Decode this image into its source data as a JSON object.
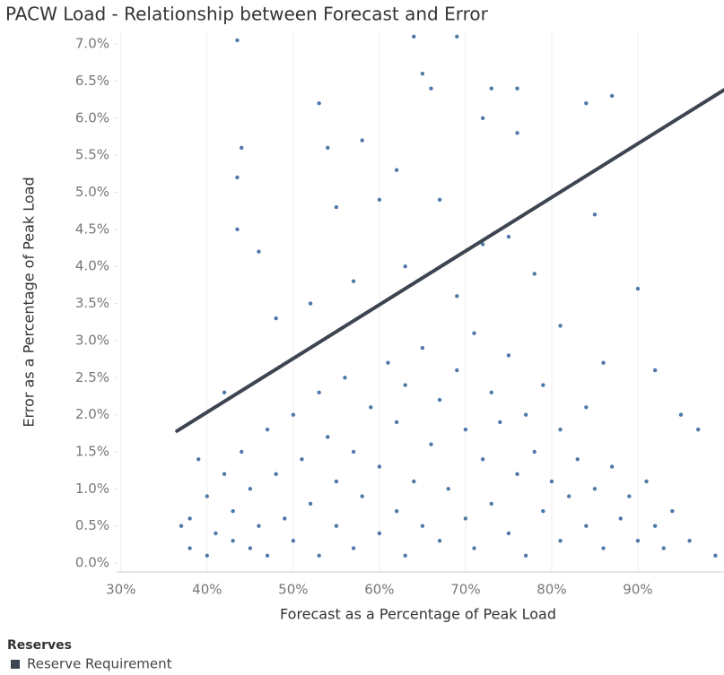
{
  "chart_data": {
    "type": "scatter",
    "title": "PACW Load - Relationship between Forecast and Error",
    "x_label": "Forecast as a Percentage of Peak Load",
    "y_label": "Error as a Percentage of Peak Load",
    "legend_title": "Reserves",
    "xlim": [
      29.5,
      100
    ],
    "ylim": [
      -0.12,
      7.17
    ],
    "xticks": [
      {
        "value": 30,
        "label": "30%"
      },
      {
        "value": 40,
        "label": "40%"
      },
      {
        "value": 50,
        "label": "50%"
      },
      {
        "value": 60,
        "label": "60%"
      },
      {
        "value": 70,
        "label": "70%"
      },
      {
        "value": 80,
        "label": "80%"
      },
      {
        "value": 90,
        "label": "90%"
      }
    ],
    "yticks": [
      {
        "value": 0,
        "label": "0.0%"
      },
      {
        "value": 0.5,
        "label": "0.5%"
      },
      {
        "value": 1,
        "label": "1.0%"
      },
      {
        "value": 1.5,
        "label": "1.5%"
      },
      {
        "value": 2,
        "label": "2.0%"
      },
      {
        "value": 2.5,
        "label": "2.5%"
      },
      {
        "value": 3,
        "label": "3.0%"
      },
      {
        "value": 3.5,
        "label": "3.5%"
      },
      {
        "value": 4,
        "label": "4.0%"
      },
      {
        "value": 4.5,
        "label": "4.5%"
      },
      {
        "value": 5,
        "label": "5.0%"
      },
      {
        "value": 5.5,
        "label": "5.5%"
      },
      {
        "value": 6,
        "label": "6.0%"
      },
      {
        "value": 6.5,
        "label": "6.5%"
      },
      {
        "value": 7,
        "label": "7.0%"
      }
    ],
    "grid": true,
    "series": [
      {
        "color": "#4e79a7",
        "x": [
          38,
          38,
          40,
          40,
          41,
          42,
          43,
          43,
          44,
          45,
          45,
          46,
          47,
          47,
          48,
          49,
          50,
          50,
          51,
          52,
          53,
          53,
          54,
          55,
          55,
          56,
          57,
          57,
          58,
          59,
          60,
          60,
          61,
          62,
          62,
          63,
          63,
          64,
          65,
          65,
          66,
          67,
          67,
          68,
          69,
          70,
          70,
          71,
          71,
          72,
          73,
          73,
          74,
          75,
          75,
          76,
          77,
          77,
          78,
          79,
          79,
          80,
          81,
          81,
          82,
          83,
          84,
          84,
          85,
          86,
          87,
          88,
          89,
          90,
          91,
          92,
          93,
          94,
          96,
          99,
          43.5,
          44,
          43.5,
          43.5,
          53,
          54,
          58,
          62,
          64,
          65,
          66,
          69,
          72,
          73,
          76,
          76,
          84,
          87,
          55,
          60,
          67,
          72,
          78,
          85,
          90,
          92,
          95,
          97,
          48,
          52,
          46,
          57,
          63,
          69,
          75,
          81,
          86,
          42,
          39,
          37
        ],
        "values": [
          0.2,
          0.6,
          0.1,
          0.9,
          0.4,
          1.2,
          0.3,
          0.7,
          1.5,
          0.2,
          1.0,
          0.5,
          1.8,
          0.1,
          1.2,
          0.6,
          2.0,
          0.3,
          1.4,
          0.8,
          2.3,
          0.1,
          1.7,
          0.5,
          1.1,
          2.5,
          0.2,
          1.5,
          0.9,
          2.1,
          0.4,
          1.3,
          2.7,
          0.7,
          1.9,
          0.1,
          2.4,
          1.1,
          0.5,
          2.9,
          1.6,
          0.3,
          2.2,
          1.0,
          2.6,
          0.6,
          1.8,
          0.2,
          3.1,
          1.4,
          0.8,
          2.3,
          1.9,
          0.4,
          2.8,
          1.2,
          0.1,
          2.0,
          1.5,
          0.7,
          2.4,
          1.1,
          0.3,
          1.8,
          0.9,
          1.4,
          0.5,
          2.1,
          1.0,
          0.2,
          1.3,
          0.6,
          0.9,
          0.3,
          1.1,
          0.5,
          0.2,
          0.7,
          0.3,
          0.1,
          7.05,
          5.6,
          5.2,
          4.5,
          6.2,
          5.6,
          5.7,
          5.3,
          7.1,
          6.6,
          6.4,
          7.1,
          6.0,
          6.4,
          6.4,
          5.8,
          6.2,
          6.3,
          4.8,
          4.9,
          4.9,
          4.3,
          3.9,
          4.7,
          3.7,
          2.6,
          2.0,
          1.8,
          3.3,
          3.5,
          4.2,
          3.8,
          4.0,
          3.6,
          4.4,
          3.2,
          2.7,
          2.3,
          1.4,
          0.5
        ]
      },
      {
        "name": "Reserve Requirement",
        "type": "line",
        "color": "#3d4551",
        "x": [
          36.5,
          100
        ],
        "values": [
          1.78,
          6.38
        ]
      }
    ]
  }
}
